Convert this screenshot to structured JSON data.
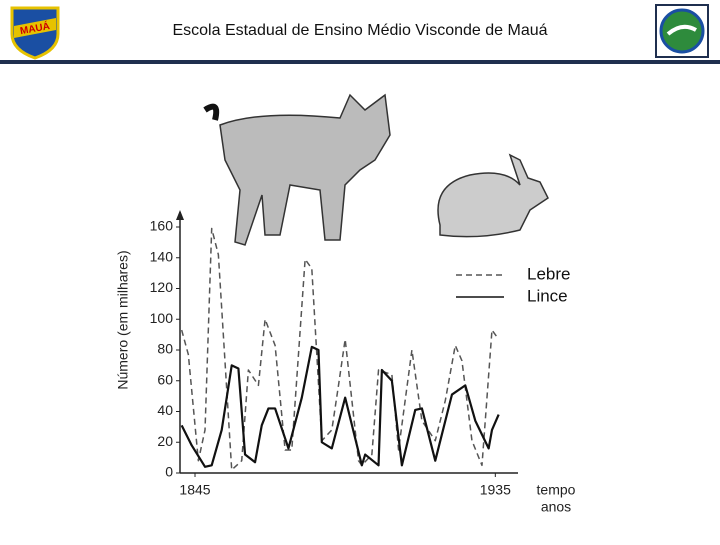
{
  "header": {
    "title": "Escola Estadual de Ensino Médio Visconde de Mauá",
    "logo_text": "MAUÁ"
  },
  "chart_data": {
    "type": "line",
    "ylabel": "Número (em milhares)",
    "xlabel": [
      "tempo",
      "anos"
    ],
    "xlim": [
      1840.5,
      1940
    ],
    "xticks": [
      1845,
      1935
    ],
    "ylim": [
      0,
      160
    ],
    "yticks": [
      0,
      20,
      40,
      60,
      80,
      100,
      120,
      140,
      160
    ],
    "series": [
      {
        "name": "Lebre",
        "color": "#555555",
        "dashed": true,
        "x": [
          1841,
          1843,
          1846,
          1848,
          1850,
          1852,
          1856,
          1859,
          1861,
          1864,
          1866,
          1869,
          1872,
          1874,
          1878,
          1880,
          1883,
          1886,
          1888,
          1890,
          1894,
          1895,
          1898,
          1900,
          1904,
          1906,
          1910,
          1913,
          1917,
          1920,
          1923,
          1925,
          1928,
          1931,
          1934,
          1936
        ],
        "values": [
          93,
          77,
          8,
          28,
          159,
          142,
          2,
          8,
          67,
          57,
          100,
          83,
          15,
          15,
          139,
          133,
          21,
          28,
          57,
          87,
          8,
          5,
          12,
          67,
          64,
          15,
          80,
          34,
          21,
          47,
          83,
          73,
          21,
          5,
          93,
          87
        ]
      },
      {
        "name": "Lince",
        "color": "#111111",
        "dashed": false,
        "x": [
          1841,
          1844,
          1848,
          1850,
          1853,
          1856,
          1858,
          1860,
          1863,
          1865,
          1867,
          1869,
          1873,
          1877,
          1880,
          1882,
          1883,
          1886,
          1890,
          1895,
          1896,
          1900,
          1901,
          1904,
          1907,
          1911,
          1913,
          1917,
          1922,
          1926,
          1929,
          1933,
          1934,
          1936
        ],
        "values": [
          31,
          18,
          4,
          5,
          28,
          70,
          68,
          12,
          7,
          31,
          42,
          42,
          16,
          49,
          82,
          80,
          20,
          16,
          49,
          5,
          12,
          5,
          67,
          60,
          5,
          41,
          42,
          8,
          51,
          57,
          34,
          16,
          28,
          38
        ]
      }
    ]
  }
}
